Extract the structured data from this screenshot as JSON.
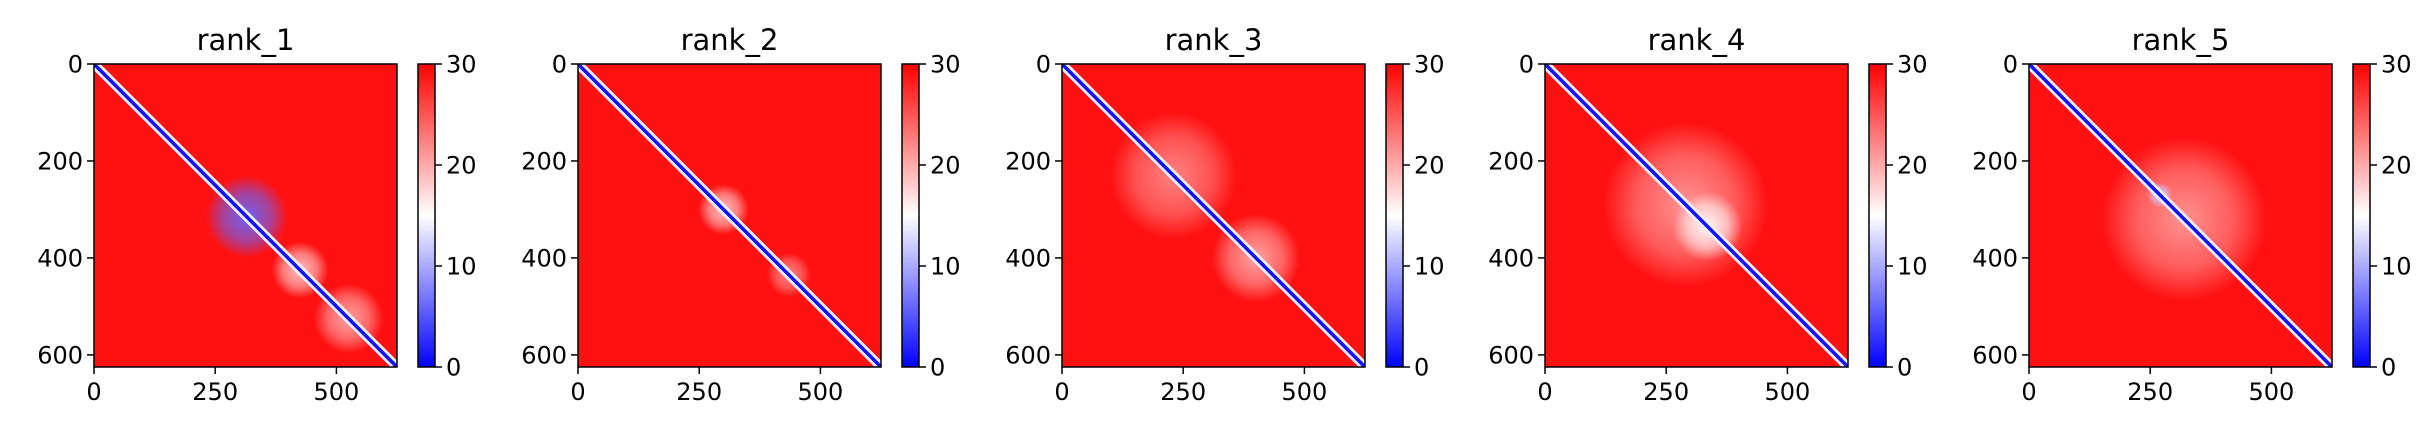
{
  "chart_data": [
    {
      "type": "heatmap",
      "title": "rank_1",
      "matrix_size": 625,
      "xticks": [
        0,
        250,
        500
      ],
      "yticks": [
        0,
        200,
        400,
        600
      ],
      "colorbar": {
        "min": 0,
        "max": 30,
        "ticks": [
          0,
          10,
          20,
          30
        ],
        "colors": [
          "#0000ff",
          "#ffffff",
          "#ff0000"
        ]
      },
      "diagonal_value": 1,
      "background_value": 29,
      "low_error_regions": [
        {
          "rows": [
            250,
            380
          ],
          "cols": [
            250,
            380
          ],
          "value": 6
        },
        {
          "rows": [
            380,
            470
          ],
          "cols": [
            380,
            470
          ],
          "value": 18
        },
        {
          "rows": [
            470,
            580
          ],
          "cols": [
            470,
            580
          ],
          "value": 20
        }
      ]
    },
    {
      "type": "heatmap",
      "title": "rank_2",
      "matrix_size": 625,
      "xticks": [
        0,
        250,
        500
      ],
      "yticks": [
        0,
        200,
        400,
        600
      ],
      "colorbar": {
        "min": 0,
        "max": 30,
        "ticks": [
          0,
          10,
          20,
          30
        ],
        "colors": [
          "#0000ff",
          "#ffffff",
          "#ff0000"
        ]
      },
      "diagonal_value": 1,
      "background_value": 29,
      "low_error_regions": [
        {
          "rows": [
            260,
            340
          ],
          "cols": [
            260,
            340
          ],
          "value": 18
        },
        {
          "rows": [
            400,
            470
          ],
          "cols": [
            400,
            470
          ],
          "value": 22
        }
      ]
    },
    {
      "type": "heatmap",
      "title": "rank_3",
      "matrix_size": 625,
      "xticks": [
        0,
        250,
        500
      ],
      "yticks": [
        0,
        200,
        400,
        600
      ],
      "colorbar": {
        "min": 0,
        "max": 30,
        "ticks": [
          0,
          10,
          20,
          30
        ],
        "colors": [
          "#0000ff",
          "#ffffff",
          "#ff0000"
        ]
      },
      "diagonal_value": 1,
      "background_value": 29,
      "low_error_regions": [
        {
          "rows": [
            130,
            330
          ],
          "cols": [
            130,
            330
          ],
          "value": 22
        },
        {
          "rows": [
            330,
            470
          ],
          "cols": [
            330,
            470
          ],
          "value": 20
        }
      ]
    },
    {
      "type": "heatmap",
      "title": "rank_4",
      "matrix_size": 625,
      "xticks": [
        0,
        250,
        500
      ],
      "yticks": [
        0,
        200,
        400,
        600
      ],
      "colorbar": {
        "min": 0,
        "max": 30,
        "ticks": [
          0,
          10,
          20,
          30
        ],
        "colors": [
          "#0000ff",
          "#ffffff",
          "#ff0000"
        ]
      },
      "diagonal_value": 1,
      "background_value": 29,
      "low_error_regions": [
        {
          "rows": [
            160,
            420
          ],
          "cols": [
            160,
            420
          ],
          "value": 21
        },
        {
          "rows": [
            280,
            390
          ],
          "cols": [
            280,
            390
          ],
          "value": 15
        }
      ]
    },
    {
      "type": "heatmap",
      "title": "rank_5",
      "matrix_size": 625,
      "xticks": [
        0,
        250,
        500
      ],
      "yticks": [
        0,
        200,
        400,
        600
      ],
      "colorbar": {
        "min": 0,
        "max": 30,
        "ticks": [
          0,
          10,
          20,
          30
        ],
        "colors": [
          "#0000ff",
          "#ffffff",
          "#ff0000"
        ]
      },
      "diagonal_value": 1,
      "background_value": 29,
      "low_error_regions": [
        {
          "rows": [
            190,
            450
          ],
          "cols": [
            190,
            450
          ],
          "value": 21
        },
        {
          "rows": [
            250,
            290
          ],
          "cols": [
            250,
            290
          ],
          "value": 12
        }
      ]
    }
  ]
}
